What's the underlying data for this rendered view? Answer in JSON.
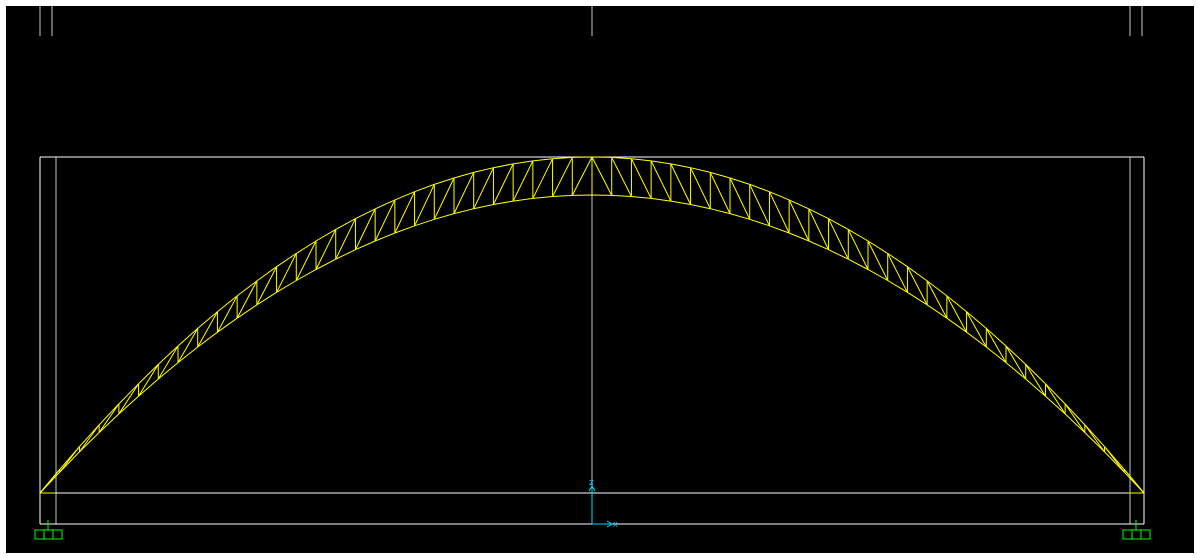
{
  "view": {
    "background_color": "#000000",
    "frame_color": "#ffffff",
    "grid_line_color": "#c8c8c8",
    "truss_color": "#ffff00",
    "support_color": "#00ff00",
    "axis_color": "#00d8ff",
    "truss_panels": 56
  },
  "axes": {
    "z_label": "Z",
    "x_label": "X"
  }
}
